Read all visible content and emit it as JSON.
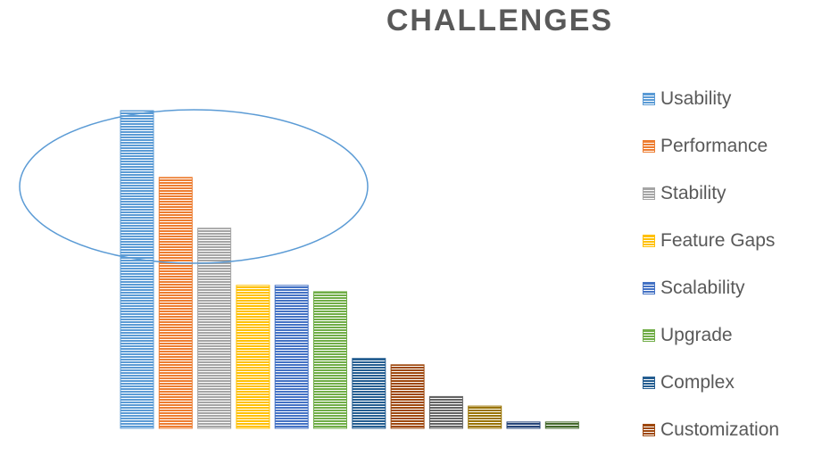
{
  "chart_data": {
    "type": "bar",
    "title": "CHALLENGES",
    "xlabel": "",
    "ylabel": "",
    "ylim": [
      0,
      100
    ],
    "grid": false,
    "legend_position": "right",
    "series": [
      {
        "name": "Usability",
        "value": 100,
        "color": "#5B9BD5"
      },
      {
        "name": "Performance",
        "value": 79,
        "color": "#ED7D31"
      },
      {
        "name": "Stability",
        "value": 63,
        "color": "#A5A5A5"
      },
      {
        "name": "Feature Gaps",
        "value": 45,
        "color": "#FFC000"
      },
      {
        "name": "Scalability",
        "value": 45,
        "color": "#4472C4"
      },
      {
        "name": "Upgrade",
        "value": 43,
        "color": "#70AD47"
      },
      {
        "name": "Complex",
        "value": 22,
        "color": "#255E91"
      },
      {
        "name": "Customization",
        "value": 20,
        "color": "#9E480E"
      },
      {
        "name": "",
        "value": 10,
        "color": "#636363"
      },
      {
        "name": "",
        "value": 7,
        "color": "#997300"
      },
      {
        "name": "",
        "value": 2,
        "color": "#264478"
      },
      {
        "name": "",
        "value": 2,
        "color": "#43682B"
      }
    ],
    "annotations": [
      {
        "type": "ellipse",
        "color": "#5B9BD5",
        "encloses": [
          "Usability",
          "Performance",
          "Stability"
        ]
      }
    ]
  }
}
